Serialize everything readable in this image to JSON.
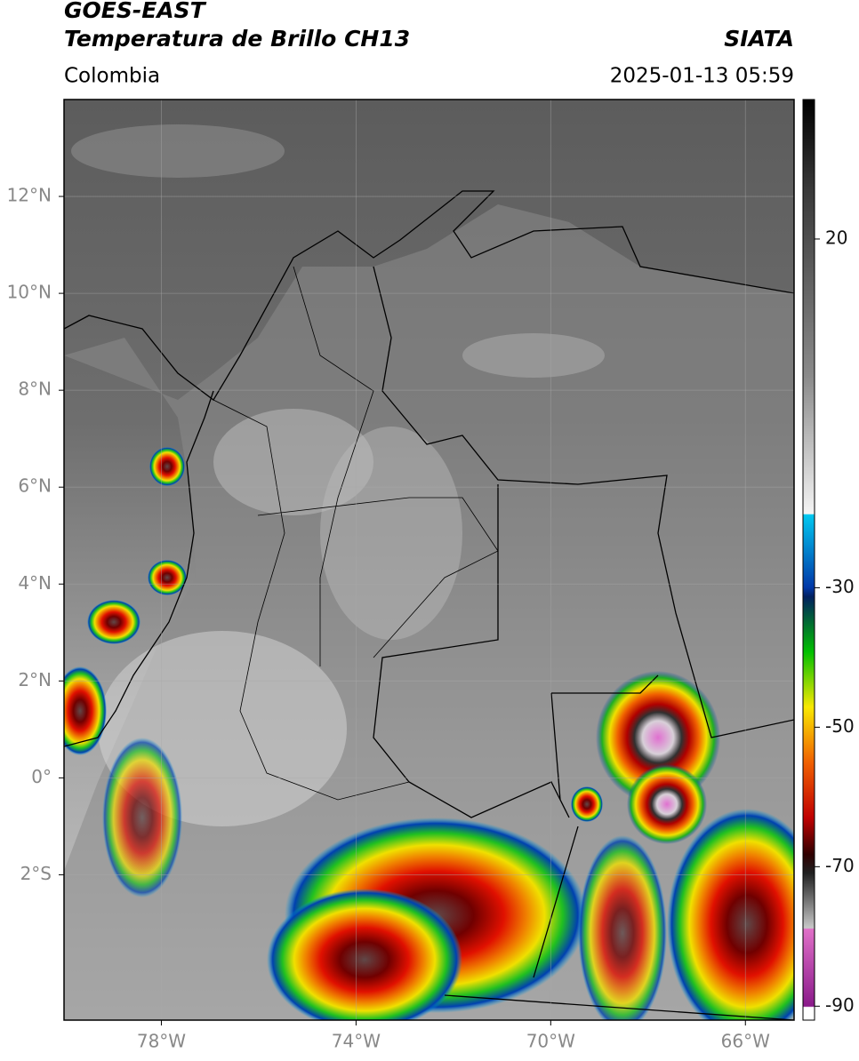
{
  "header": {
    "satellite": "GOES-EAST",
    "product": "Temperatura de Brillo CH13",
    "source": "SIATA",
    "region": "Colombia",
    "timestamp": "2025-01-13 05:59"
  },
  "map": {
    "xlim": [
      -80,
      -65
    ],
    "ylim": [
      -5,
      14
    ],
    "xticks": [
      {
        "value": -78,
        "label": "78°W"
      },
      {
        "value": -74,
        "label": "74°W"
      },
      {
        "value": -70,
        "label": "70°W"
      },
      {
        "value": -66,
        "label": "66°W"
      }
    ],
    "yticks": [
      {
        "value": 12,
        "label": "12°N"
      },
      {
        "value": 10,
        "label": "10°N"
      },
      {
        "value": 8,
        "label": "8°N"
      },
      {
        "value": 6,
        "label": "6°N"
      },
      {
        "value": 4,
        "label": "4°N"
      },
      {
        "value": 2,
        "label": "2°N"
      },
      {
        "value": 0,
        "label": "0°"
      },
      {
        "value": -2,
        "label": "2°S"
      }
    ]
  },
  "colorbar": {
    "lim": [
      -92,
      40
    ],
    "ticks": [
      20,
      -30,
      -50,
      -70,
      -90
    ]
  }
}
